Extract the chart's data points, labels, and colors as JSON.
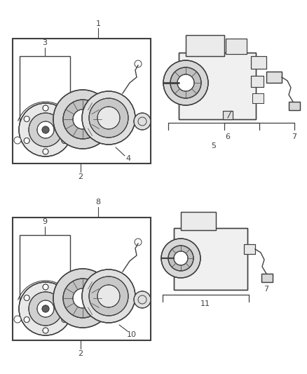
{
  "bg_color": "#ffffff",
  "line_color": "#404040",
  "label_color": "#404040",
  "fig_width": 4.38,
  "fig_height": 5.33,
  "dpi": 100
}
